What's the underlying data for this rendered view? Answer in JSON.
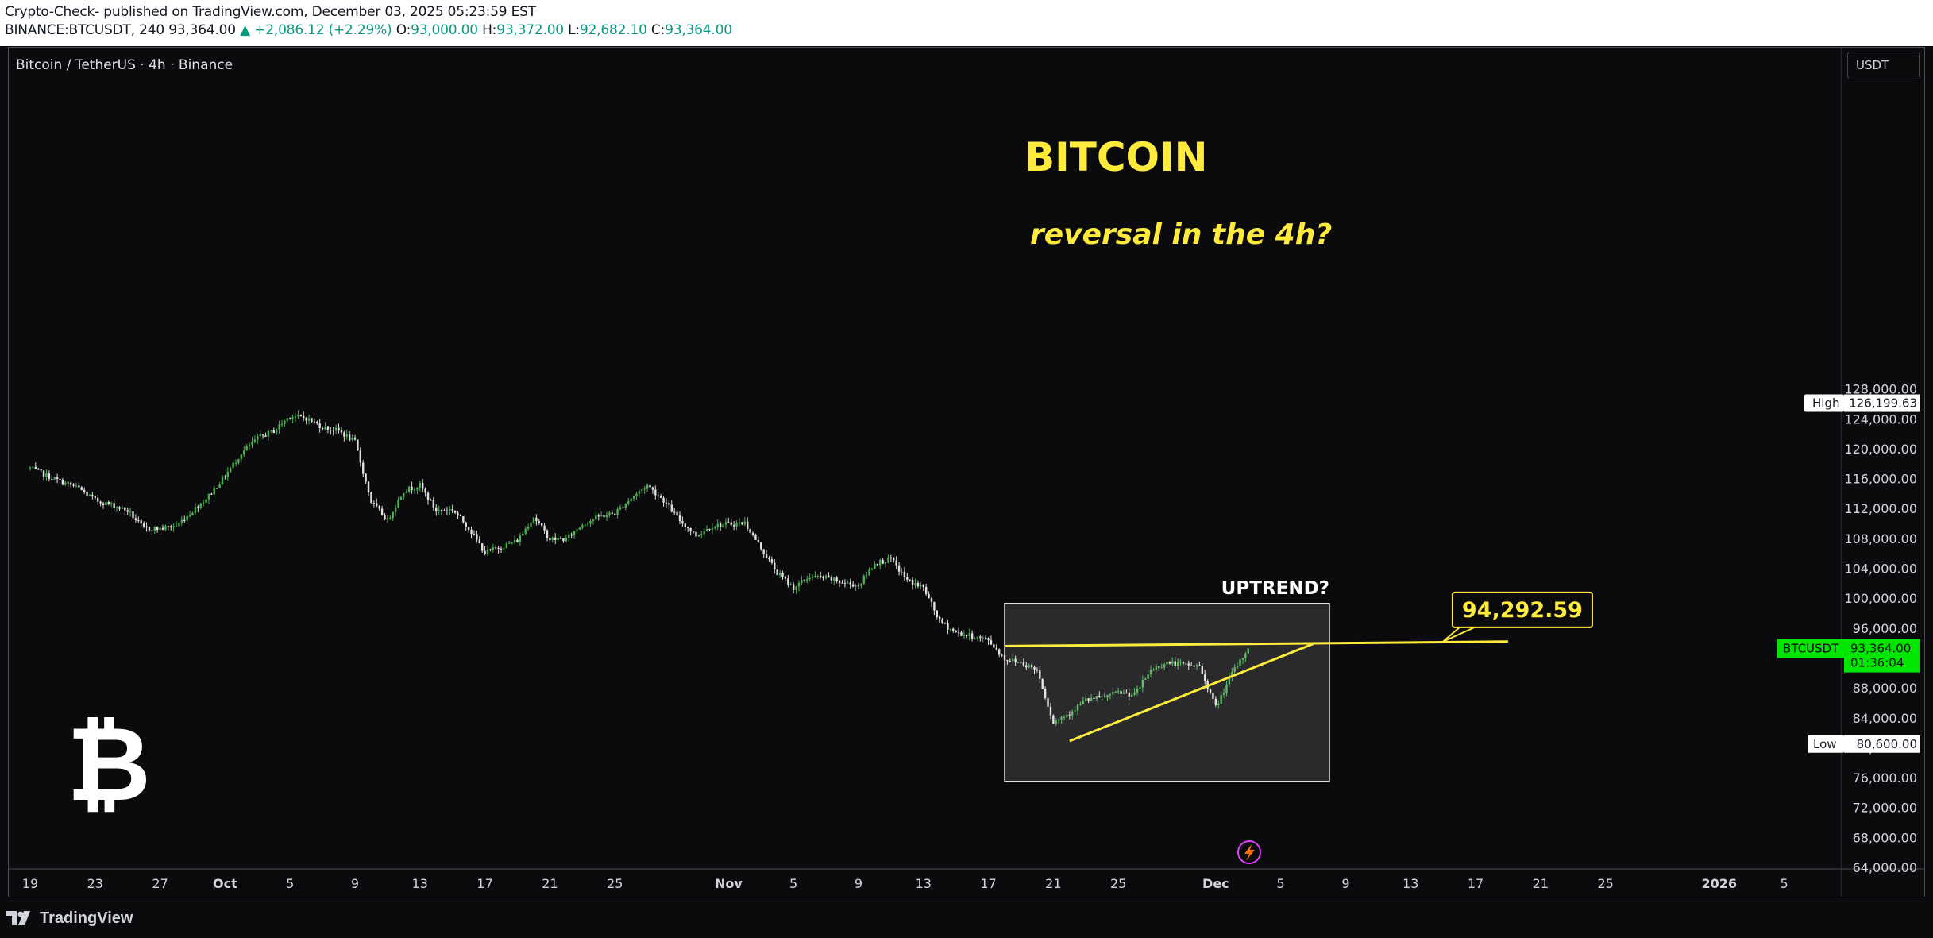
{
  "header": {
    "line1": "Crypto-Check- published on TradingView.com, December 03, 2025 05:23:59 EST",
    "symbol": "BINANCE:BTCUSDT, 240",
    "last": "93,364.00",
    "change": "▲ +2,086.12 (+2.29%)",
    "o_label": "O:",
    "o": "93,000.00",
    "h_label": "H:",
    "h": "93,372.00",
    "l_label": "L:",
    "l": "92,682.10",
    "c_label": "C:",
    "c": "93,364.00"
  },
  "legend": "Bitcoin / TetherUS · 4h · Binance",
  "currency_button": "USDT",
  "footer": {
    "brand": "TradingView",
    "logo_icon": "tradingview-logo-icon"
  },
  "colors": {
    "up": "#4caf50",
    "down": "#e0e0e0",
    "annotation": "#ffeb3b",
    "price_tag": "#00e676",
    "background": "#0b0b0d"
  },
  "chart_data": {
    "type": "candlestick",
    "symbol": "BTCUSDT",
    "interval": "4h",
    "y_axis": {
      "range": [
        62000,
        132000
      ],
      "ticks": [
        "64,000.00",
        "68,000.00",
        "72,000.00",
        "76,000.00",
        "80,000.00",
        "84,000.00",
        "88,000.00",
        "92,000.00",
        "96,000.00",
        "100,000.00",
        "104,000.00",
        "108,000.00",
        "112,000.00",
        "116,000.00",
        "120,000.00",
        "124,000.00",
        "128,000.00"
      ],
      "tick_values": [
        64000,
        68000,
        72000,
        76000,
        80000,
        84000,
        88000,
        92000,
        96000,
        100000,
        104000,
        108000,
        112000,
        116000,
        120000,
        124000,
        128000
      ]
    },
    "x_axis": {
      "ticks": [
        "19",
        "23",
        "27",
        "Oct",
        "5",
        "9",
        "13",
        "17",
        "21",
        "25",
        "Nov",
        "5",
        "9",
        "13",
        "17",
        "21",
        "25",
        "Dec",
        "5",
        "9",
        "13",
        "17",
        "21",
        "25",
        "2026",
        "5"
      ],
      "tick_dates": [
        "2025-09-19",
        "2025-09-23",
        "2025-09-27",
        "2025-10-01",
        "2025-10-05",
        "2025-10-09",
        "2025-10-13",
        "2025-10-17",
        "2025-10-21",
        "2025-10-25",
        "2025-11-01",
        "2025-11-05",
        "2025-11-09",
        "2025-11-13",
        "2025-11-17",
        "2025-11-21",
        "2025-11-25",
        "2025-12-01",
        "2025-12-05",
        "2025-12-09",
        "2025-12-13",
        "2025-12-17",
        "2025-12-21",
        "2025-12-25",
        "2026-01-01",
        "2026-01-05"
      ],
      "bold_ticks": [
        "Oct",
        "Nov",
        "Dec",
        "2026"
      ]
    },
    "price_path": [
      [
        "2025-09-19",
        117500
      ],
      [
        "2025-09-20",
        116500
      ],
      [
        "2025-09-21",
        115600
      ],
      [
        "2025-09-22",
        114800
      ],
      [
        "2025-09-23",
        113200
      ],
      [
        "2025-09-24",
        112600
      ],
      [
        "2025-09-25",
        111800
      ],
      [
        "2025-09-26",
        109400
      ],
      [
        "2025-09-27",
        109400
      ],
      [
        "2025-09-28",
        109800
      ],
      [
        "2025-09-29",
        111800
      ],
      [
        "2025-09-30",
        113800
      ],
      [
        "2025-10-01",
        116500
      ],
      [
        "2025-10-02",
        119500
      ],
      [
        "2025-10-03",
        121500
      ],
      [
        "2025-10-04",
        122500
      ],
      [
        "2025-10-05",
        124500
      ],
      [
        "2025-10-06",
        124200
      ],
      [
        "2025-10-07",
        123000
      ],
      [
        "2025-10-08",
        122500
      ],
      [
        "2025-10-09",
        121000
      ],
      [
        "2025-10-10",
        113000
      ],
      [
        "2025-10-11",
        110500
      ],
      [
        "2025-10-12",
        114500
      ],
      [
        "2025-10-13",
        115200
      ],
      [
        "2025-10-14",
        111800
      ],
      [
        "2025-10-15",
        112000
      ],
      [
        "2025-10-16",
        109500
      ],
      [
        "2025-10-17",
        106200
      ],
      [
        "2025-10-18",
        107000
      ],
      [
        "2025-10-19",
        107800
      ],
      [
        "2025-10-20",
        111000
      ],
      [
        "2025-10-21",
        108000
      ],
      [
        "2025-10-22",
        108000
      ],
      [
        "2025-10-23",
        110000
      ],
      [
        "2025-10-24",
        111000
      ],
      [
        "2025-10-25",
        111500
      ],
      [
        "2025-10-26",
        113500
      ],
      [
        "2025-10-27",
        115200
      ],
      [
        "2025-10-28",
        113200
      ],
      [
        "2025-10-29",
        110500
      ],
      [
        "2025-10-30",
        108500
      ],
      [
        "2025-10-31",
        109800
      ],
      [
        "2025-11-01",
        110000
      ],
      [
        "2025-11-02",
        110200
      ],
      [
        "2025-11-03",
        106800
      ],
      [
        "2025-11-04",
        103500
      ],
      [
        "2025-11-05",
        101500
      ],
      [
        "2025-11-06",
        103000
      ],
      [
        "2025-11-07",
        102800
      ],
      [
        "2025-11-08",
        102200
      ],
      [
        "2025-11-09",
        101800
      ],
      [
        "2025-11-10",
        104800
      ],
      [
        "2025-11-11",
        105300
      ],
      [
        "2025-11-12",
        102500
      ],
      [
        "2025-11-13",
        101500
      ],
      [
        "2025-11-14",
        97000
      ],
      [
        "2025-11-15",
        95500
      ],
      [
        "2025-11-16",
        95000
      ],
      [
        "2025-11-17",
        94500
      ],
      [
        "2025-11-18",
        92000
      ],
      [
        "2025-11-19",
        91500
      ],
      [
        "2025-11-20",
        90500
      ],
      [
        "2025-11-21",
        83500
      ],
      [
        "2025-11-22",
        84800
      ],
      [
        "2025-11-23",
        86500
      ],
      [
        "2025-11-24",
        86800
      ],
      [
        "2025-11-25",
        87500
      ],
      [
        "2025-11-26",
        87200
      ],
      [
        "2025-11-27",
        90500
      ],
      [
        "2025-11-28",
        91500
      ],
      [
        "2025-11-29",
        91200
      ],
      [
        "2025-11-30",
        91000
      ],
      [
        "2025-12-01",
        85500
      ],
      [
        "2025-12-02",
        90000
      ],
      [
        "2025-12-03",
        93364
      ]
    ],
    "high_label": {
      "label": "High",
      "value": "126,199.63",
      "price": 126199.63
    },
    "low_label": {
      "label": "Low",
      "value": "80,600.00",
      "price": 80600
    },
    "last_price": {
      "symbol": "BTCUSDT",
      "value": "93,364.00",
      "countdown": "01:36:04",
      "price": 93364
    },
    "annotations": {
      "title": "BITCOIN",
      "subtitle": "reversal in the 4h?",
      "box_label": "UPTREND?",
      "target_label": "94,292.59",
      "target_price": 94292.59,
      "box": {
        "from": "2025-11-18",
        "to": "2025-12-08",
        "top": 99400,
        "bottom": 75600
      },
      "resistance": {
        "from": "2025-11-18",
        "from_price": 93700,
        "to": "2025-12-19",
        "to_price": 94300
      },
      "trendline": {
        "from": "2025-11-22",
        "from_price": 81000,
        "to": "2025-12-07",
        "to_price": 94000
      }
    }
  }
}
